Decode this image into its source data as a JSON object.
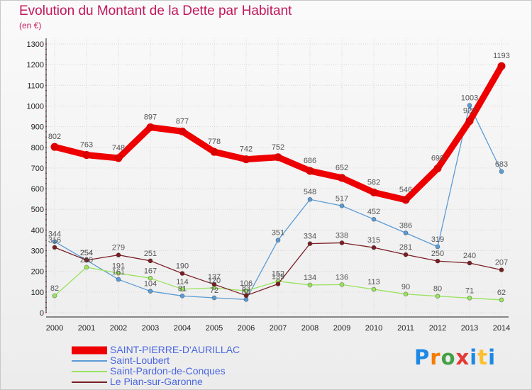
{
  "title": "Evolution du Montant de la Dette par Habitant",
  "subtitle": "(en €)",
  "brand": {
    "text": "Proxiti",
    "colors": [
      "#1e88e5",
      "#f57c00",
      "#43a047",
      "#e53935",
      "#1e88e5",
      "#fbc02d",
      "#1e88e5"
    ]
  },
  "chart_data": {
    "type": "line",
    "title": "Evolution du Montant de la Dette par Habitant",
    "ylabel": "(en €)",
    "x": [
      "2000",
      "2001",
      "2002",
      "2003",
      "2004",
      "2005",
      "2006",
      "2007",
      "2008",
      "2009",
      "2010",
      "2011",
      "2012",
      "2013",
      "2014"
    ],
    "yticks": [
      0,
      100,
      200,
      300,
      400,
      500,
      600,
      700,
      800,
      900,
      1000,
      1100,
      1200,
      1300
    ],
    "ylim": [
      0,
      1300
    ],
    "grid": true,
    "legend_position": "bottom-left",
    "series": [
      {
        "name": "SAINT-PIERRE-D'AURILLAC",
        "color": "#ee0000",
        "values": [
          802,
          763,
          748,
          897,
          877,
          778,
          742,
          752,
          686,
          652,
          582,
          546,
          698,
          927,
          1193
        ],
        "labels": [
          "802",
          "763",
          "748",
          "897",
          "877",
          "778",
          "742",
          "752",
          "686",
          "652",
          "582",
          "546",
          "698",
          "927",
          "1193"
        ]
      },
      {
        "name": "Saint-Loubert",
        "color": "#5b9bd5",
        "values": [
          344,
          254,
          161,
          104,
          81,
          72,
          64,
          351,
          548,
          517,
          452,
          386,
          319,
          1003,
          683
        ],
        "labels": [
          "344",
          "254",
          "161",
          "104",
          "81",
          "72",
          "64",
          "351",
          "548",
          "517",
          "452",
          "386",
          "319",
          "1003",
          "683"
        ]
      },
      {
        "name": "Saint-Pardon-de-Conques",
        "color": "#99e35e",
        "values": [
          82,
          220,
          191,
          167,
          114,
          120,
          106,
          152,
          134,
          136,
          113,
          90,
          80,
          71,
          62
        ],
        "labels": [
          "82",
          "220",
          "191",
          "167",
          "114",
          "120",
          "106",
          "152",
          "134",
          "136",
          "113",
          "90",
          "80",
          "71",
          "62"
        ]
      },
      {
        "name": "Le Pian-sur-Garonne",
        "color": "#7a1e24",
        "values": [
          316,
          254,
          279,
          251,
          190,
          137,
          83,
          139,
          334,
          338,
          315,
          281,
          250,
          240,
          207
        ],
        "labels": [
          "316",
          "254",
          "279",
          "251",
          "190",
          "137",
          "83",
          "139",
          "334",
          "338",
          "315",
          "281",
          "250",
          "240",
          "207"
        ]
      }
    ]
  }
}
